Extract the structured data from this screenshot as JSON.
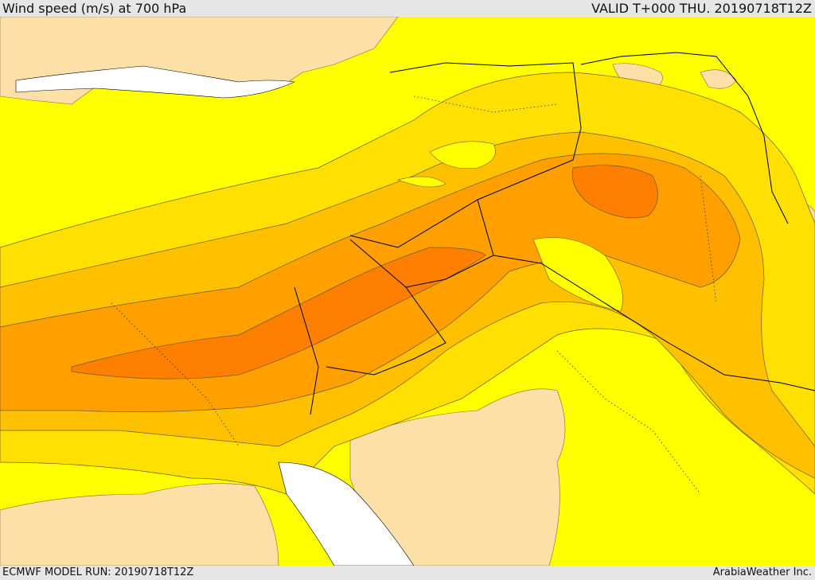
{
  "header": {
    "title": "Wind speed (m/s) at 700 hPa",
    "valid_time": "VALID T+000 THU. 20190718T12Z"
  },
  "footer": {
    "model_run": "ECMWF MODEL RUN: 20190718T12Z",
    "credit": "ArabiaWeather Inc."
  },
  "map": {
    "field": "wind-speed-700hPa",
    "colors": {
      "land_low": "#fde0a8",
      "band_1": "#ffff00",
      "band_2": "#ffe000",
      "band_3": "#ffc000",
      "band_4": "#ffa000",
      "band_5": "#ff8000",
      "band_6": "#f87818",
      "water": "#ffffff",
      "border": "#000000"
    }
  }
}
